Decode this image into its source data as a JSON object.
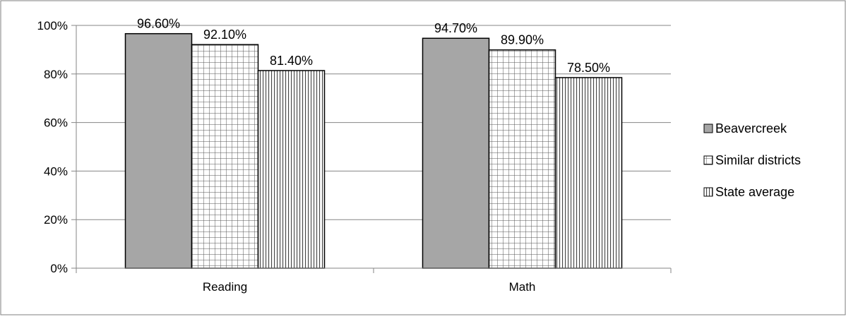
{
  "chart_data": {
    "type": "bar",
    "categories": [
      "Reading",
      "Math"
    ],
    "series": [
      {
        "name": "Beavercreek",
        "values": [
          96.6,
          94.7
        ],
        "labels": [
          "96.60%",
          "94.70%"
        ],
        "color": "#a6a6a6",
        "pattern": "solid"
      },
      {
        "name": "Similar districts",
        "values": [
          92.1,
          89.9
        ],
        "labels": [
          "92.10%",
          "89.90%"
        ],
        "color": "#ffffff",
        "pattern": "grid"
      },
      {
        "name": "State average",
        "values": [
          81.4,
          78.5
        ],
        "labels": [
          "81.40%",
          "78.50%"
        ],
        "color": "#ffffff",
        "pattern": "vertical-lines"
      }
    ],
    "yticks": [
      "0%",
      "20%",
      "40%",
      "60%",
      "80%",
      "100%"
    ],
    "ylim": [
      0,
      100
    ],
    "grid": true,
    "legend_position": "right"
  }
}
